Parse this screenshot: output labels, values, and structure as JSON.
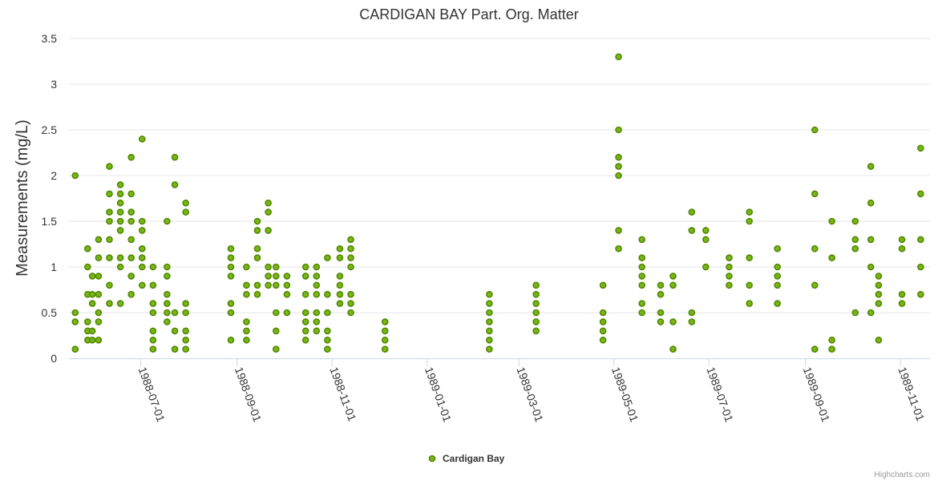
{
  "chart_data": {
    "type": "scatter",
    "title": "CARDIGAN BAY Part. Org. Matter",
    "ylabel": "Measurements (mg/L)",
    "xlabel": "",
    "ylim": [
      0,
      3.5
    ],
    "xlim": [
      "1988-05-16",
      "1989-11-20"
    ],
    "yticks": [
      {
        "value": 0,
        "label": "0"
      },
      {
        "value": 0.5,
        "label": "0.5"
      },
      {
        "value": 1,
        "label": "1"
      },
      {
        "value": 1.5,
        "label": "1.5"
      },
      {
        "value": 2,
        "label": "2"
      },
      {
        "value": 2.5,
        "label": "2.5"
      },
      {
        "value": 3,
        "label": "3"
      },
      {
        "value": 3.5,
        "label": "3.5"
      }
    ],
    "xticks": [
      {
        "date": "1988-07-01",
        "label": "1988-07-01"
      },
      {
        "date": "1988-09-01",
        "label": "1988-09-01"
      },
      {
        "date": "1988-11-01",
        "label": "1988-11-01"
      },
      {
        "date": "1989-01-01",
        "label": "1989-01-01"
      },
      {
        "date": "1989-03-01",
        "label": "1989-03-01"
      },
      {
        "date": "1989-05-01",
        "label": "1989-05-01"
      },
      {
        "date": "1989-07-01",
        "label": "1989-07-01"
      },
      {
        "date": "1989-09-01",
        "label": "1989-09-01"
      },
      {
        "date": "1989-11-01",
        "label": "1989-11-01"
      }
    ],
    "grid": true,
    "legend_position": "bottom-center",
    "series": [
      {
        "name": "Cardigan Bay",
        "color": "#7cb518",
        "points": [
          [
            "1988-05-20",
            [
              2.0,
              0.5,
              0.4,
              0.1
            ]
          ],
          [
            "1988-05-28",
            [
              1.2,
              1.0,
              0.7,
              0.4,
              0.3,
              0.2
            ]
          ],
          [
            "1988-05-31",
            [
              0.9,
              0.7,
              0.6,
              0.3,
              0.2
            ]
          ],
          [
            "1988-06-04",
            [
              1.3,
              1.1,
              0.9,
              0.7,
              0.5,
              0.4,
              0.2
            ]
          ],
          [
            "1988-06-11",
            [
              2.1,
              1.8,
              1.6,
              1.5,
              1.3,
              1.1,
              0.8,
              0.6
            ]
          ],
          [
            "1988-06-18",
            [
              1.9,
              1.8,
              1.7,
              1.6,
              1.5,
              1.4,
              1.1,
              1.0,
              0.6
            ]
          ],
          [
            "1988-06-25",
            [
              2.2,
              1.8,
              1.6,
              1.5,
              1.3,
              1.1,
              0.9,
              0.7
            ]
          ],
          [
            "1988-07-02",
            [
              2.4,
              1.5,
              1.4,
              1.2,
              1.1,
              1.0,
              0.8
            ]
          ],
          [
            "1988-07-09",
            [
              1.0,
              0.8,
              0.6,
              0.5,
              0.3,
              0.2,
              0.1
            ]
          ],
          [
            "1988-07-18",
            [
              1.5,
              1.0,
              0.9,
              0.7,
              0.6,
              0.5,
              0.4
            ]
          ],
          [
            "1988-07-23",
            [
              2.2,
              1.9,
              0.5,
              0.3,
              0.1
            ]
          ],
          [
            "1988-07-30",
            [
              1.7,
              1.6,
              0.6,
              0.5,
              0.3,
              0.2,
              0.1
            ]
          ],
          [
            "1988-08-28",
            [
              1.2,
              1.1,
              1.0,
              0.9,
              0.6,
              0.5,
              0.2
            ]
          ],
          [
            "1988-09-07",
            [
              1.0,
              0.8,
              0.7,
              0.4,
              0.3,
              0.2
            ]
          ],
          [
            "1988-09-14",
            [
              1.5,
              1.4,
              1.2,
              1.1,
              0.8,
              0.7
            ]
          ],
          [
            "1988-09-21",
            [
              1.7,
              1.6,
              1.4,
              1.0,
              0.9,
              0.8
            ]
          ],
          [
            "1988-09-26",
            [
              1.0,
              0.9,
              0.8,
              0.5,
              0.3,
              0.1
            ]
          ],
          [
            "1988-10-03",
            [
              0.9,
              0.8,
              0.7,
              0.5
            ]
          ],
          [
            "1988-10-15",
            [
              1.0,
              0.9,
              0.7,
              0.5,
              0.4,
              0.3,
              0.2
            ]
          ],
          [
            "1988-10-22",
            [
              1.0,
              0.9,
              0.8,
              0.7,
              0.5,
              0.4,
              0.3
            ]
          ],
          [
            "1988-10-29",
            [
              1.1,
              0.7,
              0.5,
              0.3,
              0.2,
              0.1
            ]
          ],
          [
            "1988-11-06",
            [
              1.2,
              1.1,
              0.9,
              0.8,
              0.7,
              0.6
            ]
          ],
          [
            "1988-11-13",
            [
              1.3,
              1.2,
              1.1,
              1.0,
              0.7,
              0.6,
              0.5
            ]
          ],
          [
            "1988-12-05",
            [
              0.4,
              0.3,
              0.2,
              0.1
            ]
          ],
          [
            "1989-02-10",
            [
              0.7,
              0.6,
              0.5,
              0.4,
              0.3,
              0.2,
              0.1
            ]
          ],
          [
            "1989-03-12",
            [
              0.8,
              0.7,
              0.6,
              0.5,
              0.4,
              0.3
            ]
          ],
          [
            "1989-04-24",
            [
              0.8,
              0.5,
              0.4,
              0.3,
              0.2
            ]
          ],
          [
            "1989-05-04",
            [
              3.3,
              2.5,
              2.2,
              2.1,
              2.0,
              1.4,
              1.2
            ]
          ],
          [
            "1989-05-19",
            [
              1.3,
              1.1,
              1.0,
              0.9,
              0.8,
              0.6,
              0.5
            ]
          ],
          [
            "1989-05-31",
            [
              0.8,
              0.7,
              0.5,
              0.4
            ]
          ],
          [
            "1989-06-08",
            [
              0.9,
              0.8,
              0.4,
              0.1
            ]
          ],
          [
            "1989-06-20",
            [
              1.6,
              1.4,
              0.5,
              0.4
            ]
          ],
          [
            "1989-06-29",
            [
              1.4,
              1.3,
              1.0
            ]
          ],
          [
            "1989-07-14",
            [
              1.1,
              1.0,
              0.9,
              0.8
            ]
          ],
          [
            "1989-07-27",
            [
              1.6,
              1.5,
              1.1,
              0.8,
              0.6
            ]
          ],
          [
            "1989-08-14",
            [
              1.2,
              1.0,
              0.9,
              0.8,
              0.6
            ]
          ],
          [
            "1989-09-07",
            [
              2.5,
              1.8,
              1.2,
              0.8,
              0.1
            ]
          ],
          [
            "1989-09-18",
            [
              1.5,
              1.1,
              0.2,
              0.1
            ]
          ],
          [
            "1989-10-03",
            [
              1.5,
              1.3,
              1.2,
              0.5
            ]
          ],
          [
            "1989-10-13",
            [
              2.1,
              1.7,
              1.3,
              1.0,
              0.5
            ]
          ],
          [
            "1989-10-18",
            [
              0.9,
              0.8,
              0.7,
              0.6,
              0.2
            ]
          ],
          [
            "1989-11-02",
            [
              1.3,
              1.2,
              0.7,
              0.6
            ]
          ],
          [
            "1989-11-14",
            [
              2.3,
              1.8,
              1.3,
              1.0,
              0.7
            ]
          ]
        ]
      }
    ]
  },
  "legend": {
    "label": "Cardigan Bay",
    "color": "#7cb518"
  },
  "credits": "Highcharts.com"
}
